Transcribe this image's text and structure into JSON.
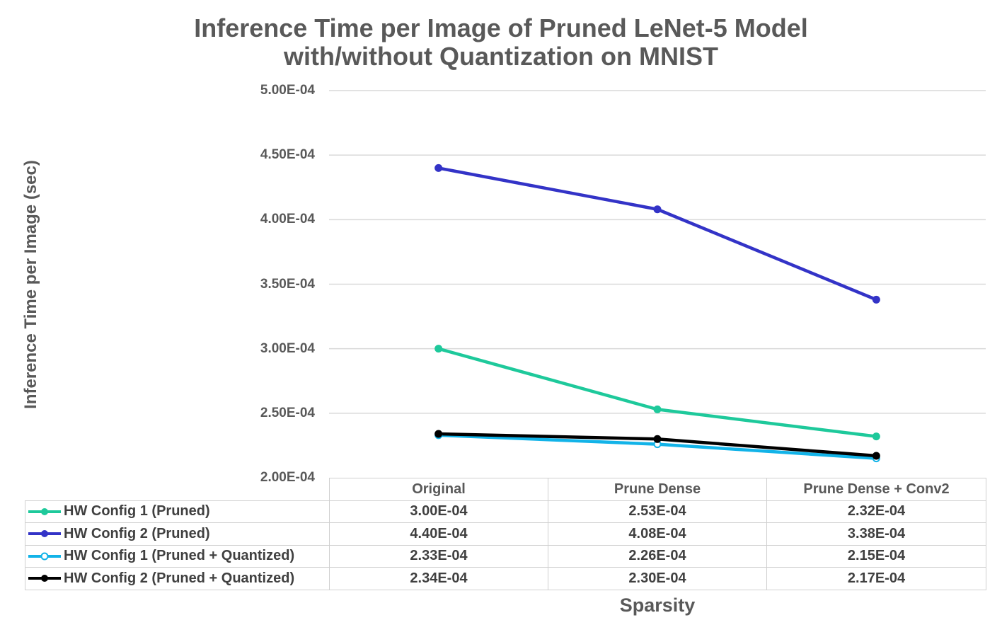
{
  "chart_data": {
    "type": "line",
    "title": "Inference Time per Image of Pruned LeNet-5 Model with/without Quantization on MNIST",
    "title_lines": [
      "Inference Time per Image of Pruned LeNet-5 Model",
      "with/without Quantization on MNIST"
    ],
    "xlabel": "Sparsity",
    "ylabel": "Inference Time per Image (sec)",
    "categories": [
      "Original",
      "Prune Dense",
      "Prune Dense + Conv2"
    ],
    "ylim": [
      0.0002,
      0.0005
    ],
    "yticks": [
      0.0002,
      0.00025,
      0.0003,
      0.00035,
      0.0004,
      0.00045,
      0.0005
    ],
    "ytick_labels": [
      "2.00E-04",
      "2.50E-04",
      "3.00E-04",
      "3.50E-04",
      "4.00E-04",
      "4.50E-04",
      "5.00E-04"
    ],
    "grid": true,
    "legend": "data-table",
    "series": [
      {
        "name": "HW Config 1 (Pruned)",
        "values": [
          0.0003,
          0.000253,
          0.000232
        ],
        "labels": [
          "3.00E-04",
          "2.53E-04",
          "2.32E-04"
        ],
        "color": "#1ec99b",
        "marker": "filled"
      },
      {
        "name": "HW Config 2 (Pruned)",
        "values": [
          0.00044,
          0.000408,
          0.000338
        ],
        "labels": [
          "4.40E-04",
          "4.08E-04",
          "3.38E-04"
        ],
        "color": "#3333c7",
        "marker": "filled"
      },
      {
        "name": "HW Config 1 (Pruned + Quantized)",
        "values": [
          0.000233,
          0.000226,
          0.000215
        ],
        "labels": [
          "2.33E-04",
          "2.26E-04",
          "2.15E-04"
        ],
        "color": "#12b3e8",
        "marker": "hollow"
      },
      {
        "name": "HW Config 2 (Pruned + Quantized)",
        "values": [
          0.000234,
          0.00023,
          0.000217
        ],
        "labels": [
          "2.34E-04",
          "2.30E-04",
          "2.17E-04"
        ],
        "color": "#000000",
        "marker": "filled"
      }
    ]
  }
}
